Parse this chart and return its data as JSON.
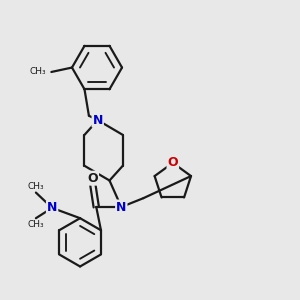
{
  "bg_color": "#e8e8e8",
  "bond_color": "#1a1a1a",
  "N_color": "#0000cc",
  "O_color": "#cc0000",
  "line_width": 1.6,
  "figsize": [
    3.0,
    3.0
  ],
  "dpi": 100,
  "xlim": [
    0,
    10
  ],
  "ylim": [
    0,
    10
  ]
}
